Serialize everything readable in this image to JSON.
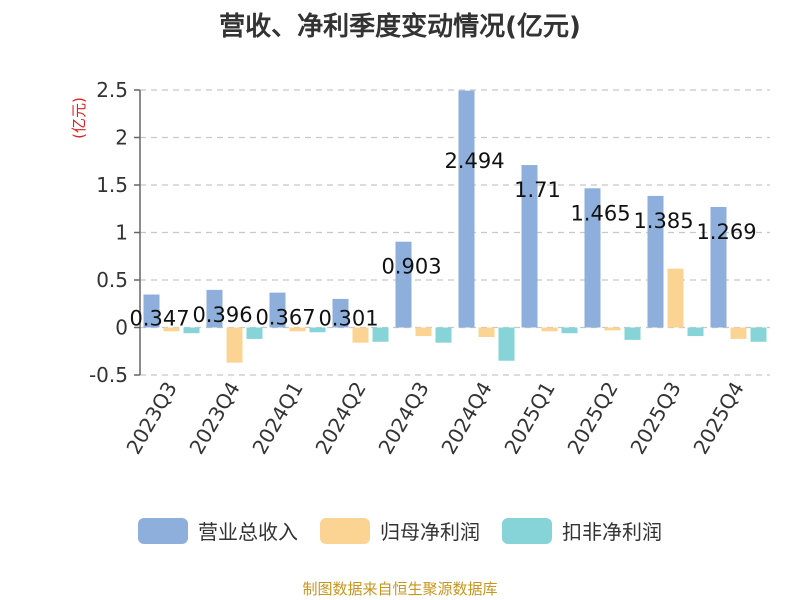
{
  "title": "营收、净利季度变动情况(亿元)",
  "source": "制图数据来自恒生聚源数据库",
  "chart_data": {
    "type": "bar",
    "title": "营收、净利季度变动情况(亿元)",
    "ylabel": "(亿元)",
    "xlabel": "",
    "ylim": [
      -0.5,
      2.5
    ],
    "yticks": [
      -0.5,
      0,
      0.5,
      1,
      1.5,
      2,
      2.5
    ],
    "ytick_labels": [
      "-0.5",
      "0",
      "0.5",
      "1",
      "1.5",
      "2",
      "2.5"
    ],
    "grid": true,
    "legend_position": "bottom",
    "categories": [
      "2023Q3",
      "2023Q4",
      "2024Q1",
      "2024Q2",
      "2024Q3",
      "2024Q4",
      "2025Q1",
      "2025Q2",
      "2025Q3",
      "2025Q4"
    ],
    "series": [
      {
        "name": "营业总收入",
        "color": "#8eaedb",
        "values": [
          0.347,
          0.396,
          0.367,
          0.301,
          0.903,
          2.494,
          1.71,
          1.465,
          1.385,
          1.269
        ],
        "labels": [
          "0.347",
          "0.396",
          "0.367",
          "0.301",
          "0.903",
          "2.494",
          "1.71",
          "1.465",
          "1.385",
          "1.269"
        ]
      },
      {
        "name": "归母净利润",
        "color": "#fbd493",
        "values": [
          -0.04,
          -0.37,
          -0.04,
          -0.16,
          -0.09,
          -0.1,
          -0.04,
          -0.03,
          0.62,
          -0.12
        ]
      },
      {
        "name": "扣非净利润",
        "color": "#86d4d7",
        "values": [
          -0.06,
          -0.12,
          -0.05,
          -0.15,
          -0.16,
          -0.35,
          -0.06,
          -0.13,
          -0.09,
          -0.15
        ]
      }
    ]
  }
}
